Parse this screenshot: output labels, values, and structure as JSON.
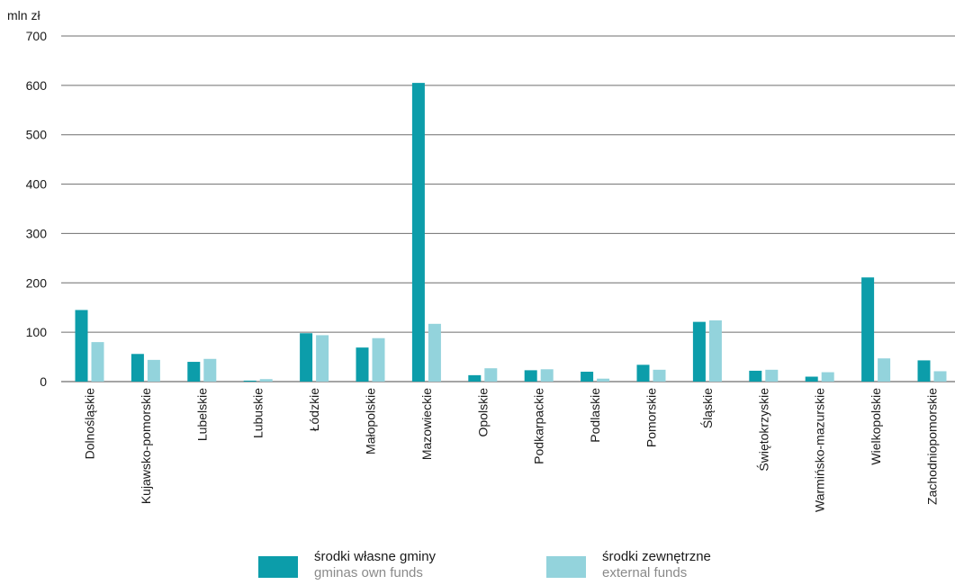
{
  "chart_data": {
    "type": "bar",
    "unit_label": "mln zł",
    "ylim": [
      0,
      700
    ],
    "yticks": [
      0,
      100,
      200,
      300,
      400,
      500,
      600,
      700
    ],
    "grid": true,
    "categories": [
      "Dolnośląskie",
      "Kujawsko-pomorskie",
      "Lubelskie",
      "Lubuskie",
      "Łódzkie",
      "Małopolskie",
      "Mazowieckie",
      "Opolskie",
      "Podkarpackie",
      "Podlaskie",
      "Pomorskie",
      "Śląskie",
      "Świętokrzyskie",
      "Warmińsko-mazurskie",
      "Wielkopolskie",
      "Zachodniopomorskie"
    ],
    "series": [
      {
        "name": "środki własne gminy",
        "name_en": "gminas own funds",
        "color": "#0c9daa",
        "values": [
          145,
          56,
          40,
          2,
          98,
          69,
          605,
          13,
          23,
          20,
          34,
          121,
          22,
          10,
          211,
          43
        ]
      },
      {
        "name": "środki zewnętrzne",
        "name_en": "external funds",
        "color": "#93d3dc",
        "values": [
          80,
          44,
          46,
          5,
          94,
          88,
          117,
          27,
          25,
          6,
          24,
          124,
          24,
          19,
          47,
          21
        ]
      }
    ],
    "legend_position": "bottom"
  }
}
